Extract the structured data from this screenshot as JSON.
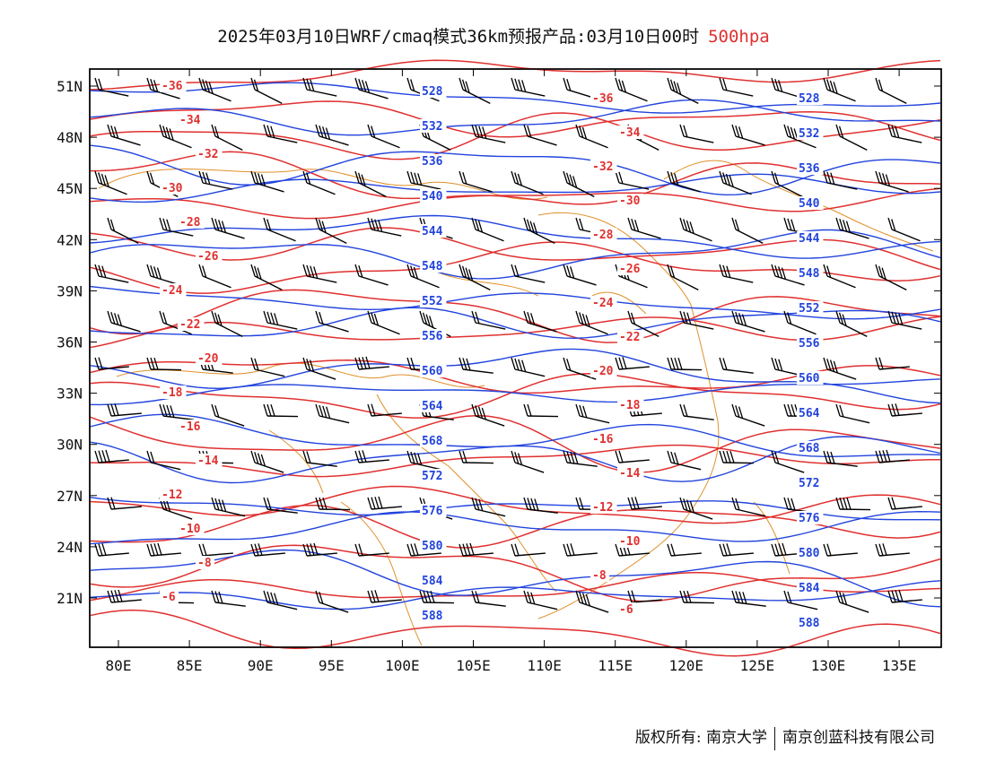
{
  "title": {
    "main": "2025年03月10日WRF/cmaq模式36km预报产品:03月10日00时",
    "level": "500hpa"
  },
  "map": {
    "lat_labels": [
      "51N",
      "48N",
      "45N",
      "42N",
      "39N",
      "36N",
      "33N",
      "30N",
      "27N",
      "24N",
      "21N"
    ],
    "lon_labels": [
      "80E",
      "85E",
      "90E",
      "95E",
      "100E",
      "105E",
      "110E",
      "115E",
      "120E",
      "125E",
      "130E",
      "135E"
    ],
    "lon_range": [
      78,
      138
    ],
    "lat_range": [
      18,
      52
    ],
    "colors": {
      "height_contour": "#2244dd",
      "temperature_contour": "#e03030",
      "coastline_border": "#e0902a",
      "wind_barb": "#000000"
    },
    "layers": [
      "geopotential-height-contours",
      "temperature-contours",
      "wind-barbs",
      "coastlines-and-borders"
    ],
    "height_contour_labels": [
      "528",
      "532",
      "536",
      "540",
      "544",
      "548",
      "552",
      "556",
      "560",
      "564",
      "568",
      "572",
      "576",
      "580",
      "584",
      "588"
    ],
    "temperature_contour_labels": [
      "-36",
      "-34",
      "-32",
      "-30",
      "-28",
      "-26",
      "-24",
      "-22",
      "-20",
      "-18",
      "-16",
      "-14",
      "-12",
      "-10",
      "-8",
      "-6"
    ]
  },
  "footer": {
    "copyright_left": "版权所有: 南京大学",
    "copyright_right": "南京创蓝科技有限公司"
  }
}
